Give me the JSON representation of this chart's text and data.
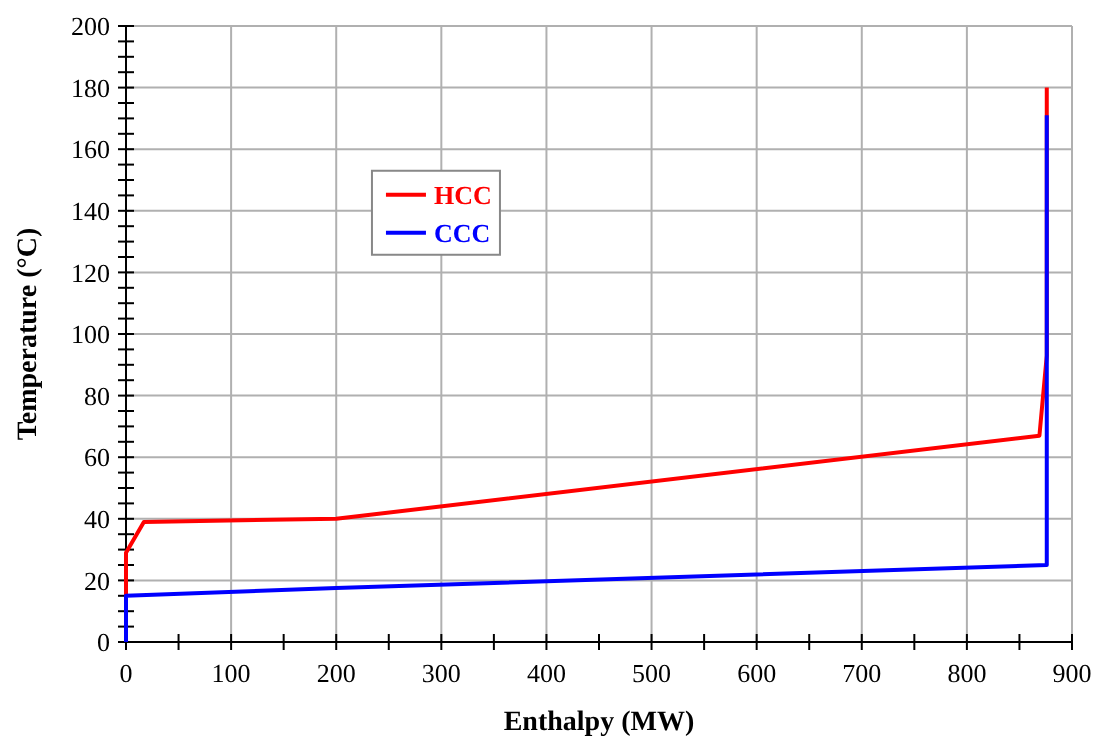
{
  "chart_data": {
    "type": "line",
    "xlabel": "Enthalpy (MW)",
    "ylabel": "Temperature (°C)",
    "xlim": [
      0,
      900
    ],
    "ylim": [
      0,
      200
    ],
    "xticks": [
      0,
      {
        "value": 50,
        "label": null
      },
      100,
      {
        "value": 150,
        "label": null
      },
      200,
      {
        "value": 250,
        "label": null
      },
      300,
      {
        "value": 350,
        "label": null
      },
      400,
      {
        "value": 450,
        "label": null
      },
      500,
      {
        "value": 550,
        "label": null
      },
      600,
      {
        "value": 650,
        "label": null
      },
      700,
      {
        "value": 750,
        "label": null
      },
      800,
      {
        "value": 850,
        "label": null
      },
      900
    ],
    "yticks": [
      0,
      {
        "value": 5,
        "label": null
      },
      {
        "value": 10,
        "label": null
      },
      {
        "value": 15,
        "label": null
      },
      20,
      {
        "value": 25,
        "label": null
      },
      {
        "value": 30,
        "label": null
      },
      {
        "value": 35,
        "label": null
      },
      40,
      {
        "value": 45,
        "label": null
      },
      {
        "value": 50,
        "label": null
      },
      {
        "value": 55,
        "label": null
      },
      60,
      {
        "value": 65,
        "label": null
      },
      {
        "value": 70,
        "label": null
      },
      {
        "value": 75,
        "label": null
      },
      80,
      {
        "value": 85,
        "label": null
      },
      {
        "value": 90,
        "label": null
      },
      {
        "value": 95,
        "label": null
      },
      100,
      {
        "value": 105,
        "label": null
      },
      {
        "value": 110,
        "label": null
      },
      {
        "value": 115,
        "label": null
      },
      120,
      {
        "value": 125,
        "label": null
      },
      {
        "value": 130,
        "label": null
      },
      {
        "value": 135,
        "label": null
      },
      140,
      {
        "value": 145,
        "label": null
      },
      {
        "value": 150,
        "label": null
      },
      {
        "value": 155,
        "label": null
      },
      160,
      {
        "value": 165,
        "label": null
      },
      {
        "value": 170,
        "label": null
      },
      {
        "value": 175,
        "label": null
      },
      180,
      {
        "value": 185,
        "label": null
      },
      {
        "value": 190,
        "label": null
      },
      {
        "value": 195,
        "label": null
      },
      200
    ],
    "grid": true,
    "legend": "top left",
    "marker": "none",
    "line_style": "solid",
    "series": [
      {
        "name": "HCC",
        "color": "#ff0000",
        "x": [
          0,
          0,
          17,
          200,
          869,
          876,
          876
        ],
        "values": [
          15,
          29,
          39,
          40,
          67,
          93,
          180
        ]
      },
      {
        "name": "CCC",
        "color": "#0000ff",
        "x": [
          0,
          0,
          200,
          876,
          876
        ],
        "values": [
          0,
          15,
          17.5,
          25,
          171
        ]
      }
    ]
  }
}
